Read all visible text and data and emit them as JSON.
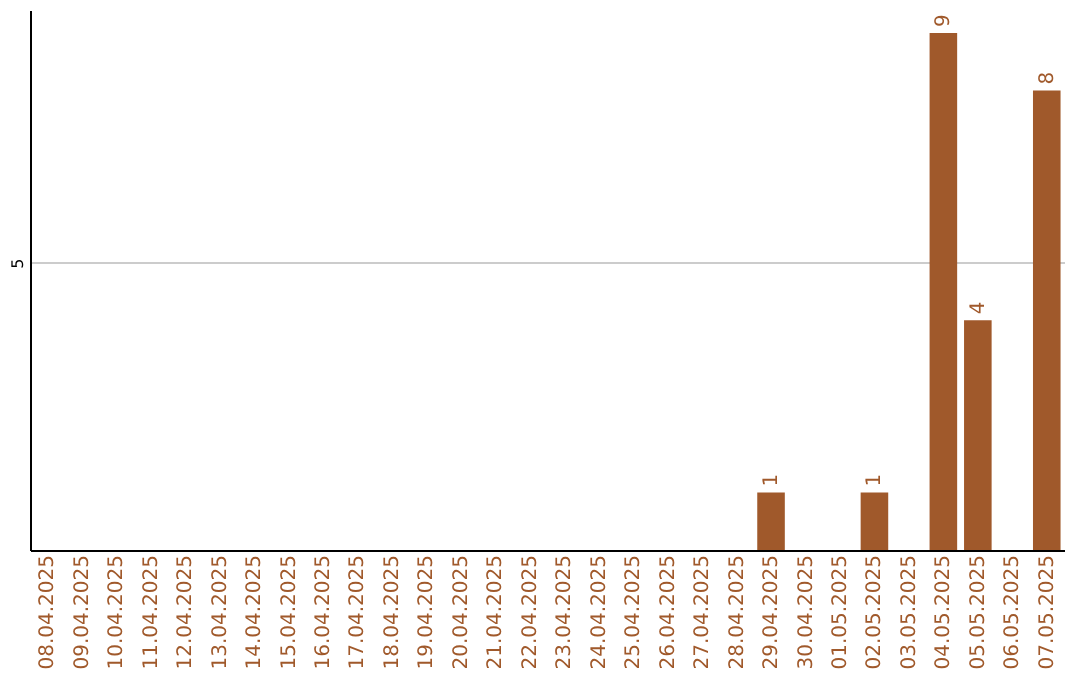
{
  "chart_data": {
    "type": "bar",
    "categories": [
      "08.04.2025",
      "09.04.2025",
      "10.04.2025",
      "11.04.2025",
      "12.04.2025",
      "13.04.2025",
      "14.04.2025",
      "15.04.2025",
      "16.04.2025",
      "17.04.2025",
      "18.04.2025",
      "19.04.2025",
      "20.04.2025",
      "21.04.2025",
      "22.04.2025",
      "23.04.2025",
      "24.04.2025",
      "25.04.2025",
      "26.04.2025",
      "27.04.2025",
      "28.04.2025",
      "29.04.2025",
      "30.04.2025",
      "01.05.2025",
      "02.05.2025",
      "03.05.2025",
      "04.05.2025",
      "05.05.2025",
      "06.05.2025",
      "07.05.2025"
    ],
    "values": [
      null,
      null,
      null,
      null,
      null,
      null,
      null,
      null,
      null,
      null,
      null,
      null,
      null,
      null,
      null,
      null,
      null,
      null,
      null,
      null,
      null,
      1,
      null,
      null,
      1,
      null,
      9,
      4,
      null,
      8
    ],
    "color": "#a0592b",
    "ylim": [
      0,
      9.4
    ],
    "yticks": [
      5
    ],
    "grid": "y",
    "data_labels": true
  }
}
